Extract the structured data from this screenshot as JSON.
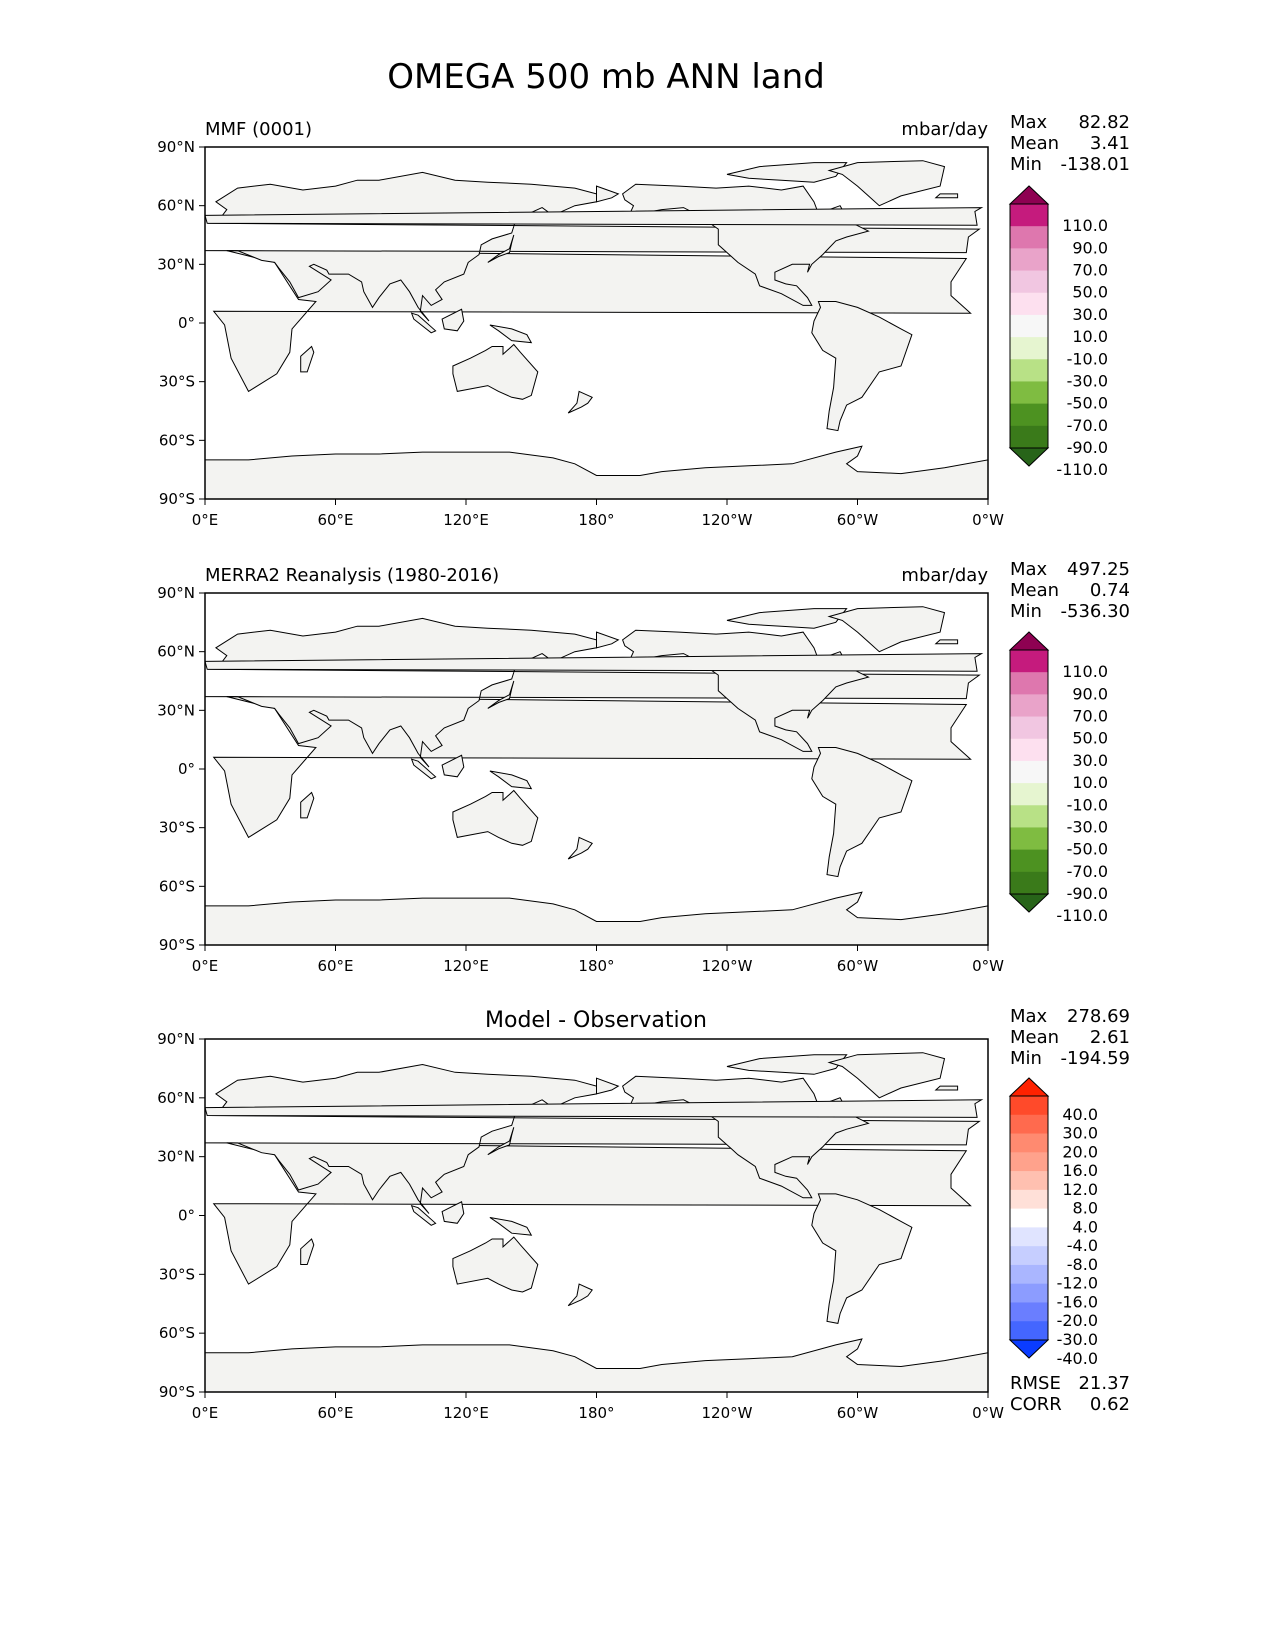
{
  "figure": {
    "title": "OMEGA 500 mb ANN land"
  },
  "colors": {
    "land": "#f3f3f1",
    "land_mix": "#ffffff",
    "coast": "#000000",
    "ocean": "#ffffff"
  },
  "axes": {
    "x_ticks": [
      "0°E",
      "60°E",
      "120°E",
      "180°",
      "120°W",
      "60°W",
      "0°W"
    ],
    "y_ticks": [
      "90°N",
      "60°N",
      "30°N",
      "0°",
      "30°S",
      "60°S",
      "90°S"
    ]
  },
  "chart_data": [
    {
      "type": "heatmap",
      "panel": "test",
      "left_title": "MMF (0001)",
      "right_title": "mbar/day",
      "stats": {
        "max": "82.82",
        "mean": "3.41",
        "min": "-138.01"
      },
      "stat_labels": {
        "max": "Max",
        "mean": "Mean",
        "min": "Min"
      },
      "x_range": [
        0,
        360
      ],
      "y_range": [
        -90,
        90
      ],
      "colorbar": {
        "levels": [
          "110.0",
          "90.0",
          "70.0",
          "50.0",
          "30.0",
          "10.0",
          "-10.0",
          "-30.0",
          "-50.0",
          "-70.0",
          "-90.0",
          "-110.0"
        ],
        "colors": [
          "#8e0152",
          "#c51b7d",
          "#de77ae",
          "#e9a3c9",
          "#f1c6e1",
          "#fde0ef",
          "#f7f7f7",
          "#e6f5d0",
          "#b8e186",
          "#7fbc41",
          "#4d9221",
          "#3a7a1a",
          "#276419"
        ],
        "extend": "both"
      }
    },
    {
      "type": "heatmap",
      "panel": "reference",
      "left_title": "MERRA2 Reanalysis (1980-2016)",
      "right_title": "mbar/day",
      "stats": {
        "max": "497.25",
        "mean": "0.74",
        "min": "-536.30"
      },
      "stat_labels": {
        "max": "Max",
        "mean": "Mean",
        "min": "Min"
      },
      "x_range": [
        0,
        360
      ],
      "y_range": [
        -90,
        90
      ],
      "colorbar": {
        "levels": [
          "110.0",
          "90.0",
          "70.0",
          "50.0",
          "30.0",
          "10.0",
          "-10.0",
          "-30.0",
          "-50.0",
          "-70.0",
          "-90.0",
          "-110.0"
        ],
        "colors": [
          "#8e0152",
          "#c51b7d",
          "#de77ae",
          "#e9a3c9",
          "#f1c6e1",
          "#fde0ef",
          "#f7f7f7",
          "#e6f5d0",
          "#b8e186",
          "#7fbc41",
          "#4d9221",
          "#3a7a1a",
          "#276419"
        ],
        "extend": "both"
      }
    },
    {
      "type": "heatmap",
      "panel": "difference",
      "center_title": "Model - Observation",
      "stats": {
        "max": "278.69",
        "mean": "2.61",
        "min": "-194.59"
      },
      "stat_labels": {
        "max": "Max",
        "mean": "Mean",
        "min": "Min"
      },
      "metrics": {
        "rmse": "21.37",
        "corr": "0.62"
      },
      "metric_labels": {
        "rmse": "RMSE",
        "corr": "CORR"
      },
      "x_range": [
        0,
        360
      ],
      "y_range": [
        -90,
        90
      ],
      "colorbar": {
        "levels": [
          "40.0",
          "30.0",
          "20.0",
          "16.0",
          "12.0",
          "8.0",
          "4.0",
          "-4.0",
          "-8.0",
          "-12.0",
          "-16.0",
          "-20.0",
          "-30.0",
          "-40.0"
        ],
        "colors": [
          "#ff2200",
          "#ff4a2a",
          "#ff6a4e",
          "#ff8a70",
          "#ffa28c",
          "#ffc0b0",
          "#ffe0d8",
          "#ffffff",
          "#e0e4ff",
          "#c6ceff",
          "#aab6ff",
          "#8c9cff",
          "#6a7eff",
          "#4466ff",
          "#0a3cff"
        ],
        "extend": "both"
      }
    }
  ]
}
